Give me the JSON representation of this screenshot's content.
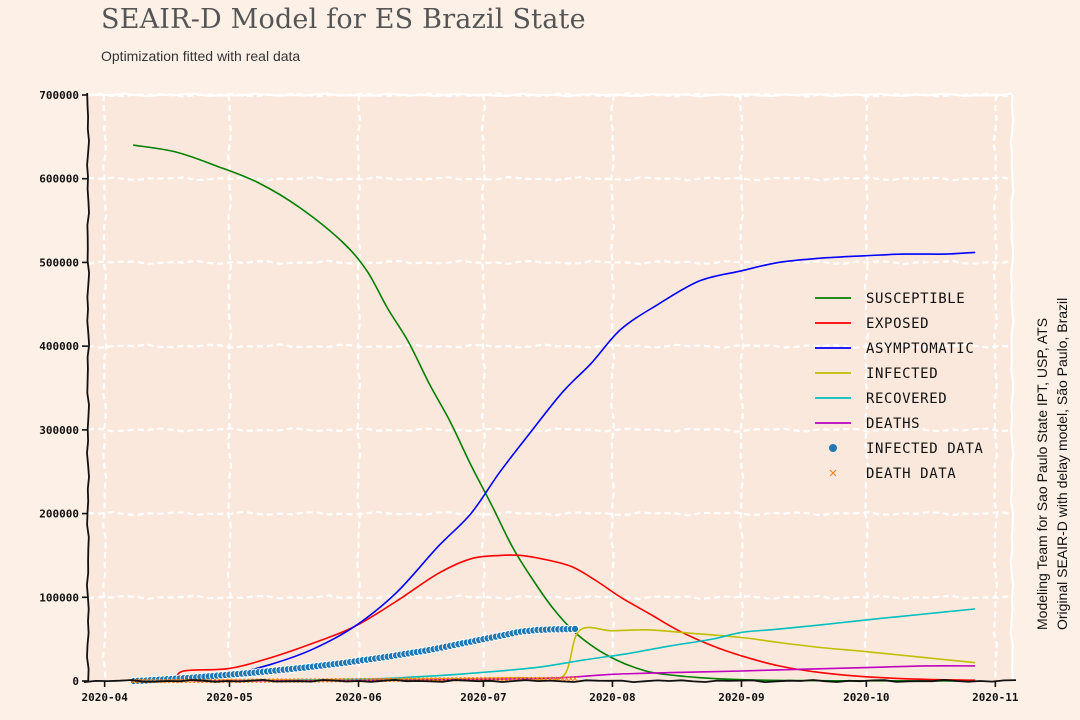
{
  "chart_data": {
    "type": "line",
    "title": "SEAIR-D Model for ES Brazil State",
    "subtitle": "Optimization fitted with real data",
    "credit_lines": [
      "Modeling Team for Sao Paulo State IPT, USP, ATS",
      "Original SEAIR-D with delay model, São Paulo, Brazil"
    ],
    "xlabel": "",
    "ylabel": "",
    "x_ticks": [
      "2020-04",
      "2020-05",
      "2020-06",
      "2020-07",
      "2020-08",
      "2020-09",
      "2020-10",
      "2020-11"
    ],
    "y_ticks": [
      0,
      100000,
      200000,
      300000,
      400000,
      500000,
      600000,
      700000
    ],
    "xlim": [
      "2020-03-28",
      "2020-11-05"
    ],
    "ylim": [
      0,
      700000
    ],
    "grid": true,
    "legend_position": "right",
    "series": [
      {
        "name": "Susceptible",
        "color": "#008000",
        "x": [
          "2020-04-08",
          "2020-04-18",
          "2020-04-28",
          "2020-05-08",
          "2020-05-18",
          "2020-05-28",
          "2020-06-03",
          "2020-06-08",
          "2020-06-13",
          "2020-06-18",
          "2020-06-23",
          "2020-06-28",
          "2020-07-03",
          "2020-07-08",
          "2020-07-13",
          "2020-07-18",
          "2020-07-23",
          "2020-07-28",
          "2020-08-02",
          "2020-08-07",
          "2020-08-12",
          "2020-08-22",
          "2020-09-01",
          "2020-09-15",
          "2020-10-01",
          "2020-10-15",
          "2020-10-27"
        ],
        "y": [
          640000,
          632000,
          615000,
          595000,
          565000,
          525000,
          490000,
          445000,
          405000,
          355000,
          310000,
          258000,
          210000,
          160000,
          120000,
          85000,
          58000,
          39000,
          25000,
          15000,
          9000,
          4000,
          1500,
          500,
          200,
          100,
          50
        ]
      },
      {
        "name": "Exposed",
        "color": "#ff0000",
        "x": [
          "2020-04-08",
          "2020-04-17",
          "2020-04-20",
          "2020-05-01",
          "2020-05-11",
          "2020-05-21",
          "2020-05-31",
          "2020-06-10",
          "2020-06-20",
          "2020-06-28",
          "2020-07-05",
          "2020-07-10",
          "2020-07-15",
          "2020-07-22",
          "2020-07-28",
          "2020-08-03",
          "2020-08-10",
          "2020-08-17",
          "2020-08-25",
          "2020-09-01",
          "2020-09-10",
          "2020-09-20",
          "2020-10-01",
          "2020-10-15",
          "2020-10-27"
        ],
        "y": [
          0,
          0,
          12000,
          15000,
          28000,
          45000,
          65000,
          95000,
          128000,
          146000,
          150000,
          150000,
          146000,
          137000,
          120000,
          100000,
          80000,
          60000,
          42000,
          30000,
          18000,
          10000,
          5000,
          2000,
          1000
        ]
      },
      {
        "name": "Asymptomatic",
        "color": "#0000ff",
        "x": [
          "2020-04-08",
          "2020-04-20",
          "2020-05-01",
          "2020-05-11",
          "2020-05-21",
          "2020-05-31",
          "2020-06-10",
          "2020-06-20",
          "2020-06-28",
          "2020-07-05",
          "2020-07-12",
          "2020-07-20",
          "2020-07-27",
          "2020-08-03",
          "2020-08-12",
          "2020-08-22",
          "2020-09-01",
          "2020-09-10",
          "2020-09-20",
          "2020-10-01",
          "2020-10-10",
          "2020-10-20",
          "2020-10-27"
        ],
        "y": [
          0,
          2000,
          8000,
          20000,
          38000,
          65000,
          105000,
          160000,
          200000,
          250000,
          295000,
          345000,
          380000,
          420000,
          450000,
          478000,
          490000,
          500000,
          505000,
          508000,
          510000,
          510000,
          512000
        ]
      },
      {
        "name": "Infected",
        "color": "#bfbf00",
        "x": [
          "2020-04-08",
          "2020-05-01",
          "2020-06-01",
          "2020-06-20",
          "2020-07-01",
          "2020-07-10",
          "2020-07-20",
          "2020-07-24",
          "2020-08-01",
          "2020-08-10",
          "2020-08-20",
          "2020-09-01",
          "2020-09-10",
          "2020-09-20",
          "2020-10-01",
          "2020-10-15",
          "2020-10-27"
        ],
        "y": [
          0,
          500,
          1500,
          2500,
          3000,
          4000,
          5000,
          60000,
          60000,
          61000,
          57000,
          52000,
          46000,
          40000,
          35000,
          28000,
          22000
        ]
      },
      {
        "name": "Recovered",
        "color": "#00bfbf",
        "x": [
          "2020-04-08",
          "2020-05-01",
          "2020-06-01",
          "2020-06-15",
          "2020-06-25",
          "2020-07-05",
          "2020-07-15",
          "2020-07-25",
          "2020-08-05",
          "2020-08-15",
          "2020-08-25",
          "2020-09-01",
          "2020-09-10",
          "2020-09-20",
          "2020-10-01",
          "2020-10-15",
          "2020-10-27"
        ],
        "y": [
          0,
          500,
          2000,
          5000,
          8000,
          12000,
          17000,
          25000,
          33000,
          42000,
          50000,
          58000,
          62000,
          67000,
          73000,
          80000,
          86000
        ]
      },
      {
        "name": "Deaths",
        "color": "#bf00bf",
        "x": [
          "2020-04-08",
          "2020-05-01",
          "2020-06-01",
          "2020-07-01",
          "2020-07-20",
          "2020-08-01",
          "2020-08-15",
          "2020-09-01",
          "2020-09-15",
          "2020-10-01",
          "2020-10-15",
          "2020-10-27"
        ],
        "y": [
          0,
          100,
          500,
          2000,
          4000,
          8000,
          10000,
          12000,
          14000,
          16000,
          18000,
          18000
        ]
      }
    ],
    "scatter_series": [
      {
        "name": "Infected Data",
        "color": "#1f77b4",
        "marker": "dot",
        "x_start": "2020-04-08",
        "x_end": "2020-07-23",
        "step_days": 1,
        "y": [
          0,
          200,
          400,
          600,
          900,
          1200,
          1500,
          1800,
          2100,
          2400,
          2700,
          3000,
          3300,
          3600,
          4000,
          4400,
          4800,
          5200,
          5600,
          6000,
          6400,
          6800,
          7200,
          7600,
          8000,
          8400,
          8800,
          9200,
          9600,
          10000,
          10500,
          11000,
          11500,
          12000,
          12500,
          13000,
          13500,
          14000,
          14500,
          15000,
          15500,
          16000,
          16600,
          17200,
          17800,
          18400,
          19000,
          19600,
          20200,
          20800,
          21400,
          22000,
          22700,
          23400,
          24100,
          24800,
          25500,
          26200,
          26900,
          27600,
          28300,
          29000,
          29800,
          30600,
          31400,
          32200,
          33000,
          33800,
          34600,
          35400,
          36200,
          37000,
          38000,
          39000,
          40000,
          41000,
          42000,
          43000,
          44000,
          45000,
          46000,
          47000,
          48000,
          49000,
          50000,
          51000,
          52000,
          53000,
          54000,
          55000,
          56000,
          57000,
          58000,
          59000,
          59500,
          60000,
          60500,
          61000,
          61200,
          61400,
          61600,
          61700,
          61800,
          61900,
          62000,
          62100,
          62200
        ]
      },
      {
        "name": "Death Data",
        "color": "#ff7f0e",
        "marker": "x",
        "x_start": "2020-04-08",
        "x_end": "2020-07-23",
        "step_days": 1,
        "y": [
          0,
          5,
          10,
          15,
          20,
          25,
          30,
          35,
          40,
          45,
          50,
          60,
          70,
          80,
          90,
          100,
          110,
          120,
          135,
          150,
          165,
          180,
          195,
          210,
          230,
          250,
          270,
          290,
          310,
          330,
          350,
          375,
          400,
          425,
          450,
          475,
          500,
          530,
          560,
          590,
          620,
          650,
          680,
          710,
          740,
          770,
          800,
          840,
          880,
          920,
          960,
          1000,
          1040,
          1080,
          1120,
          1160,
          1200,
          1240,
          1280,
          1320,
          1360,
          1400,
          1440,
          1480,
          1520,
          1560,
          1600,
          1640,
          1680,
          1720,
          1760,
          1800,
          1840,
          1880,
          1920,
          1960,
          2000,
          2030,
          2060,
          2090,
          2120,
          2150,
          2180,
          2210,
          2240,
          2270,
          2300,
          2320,
          2340,
          2360,
          2380,
          2400,
          2420,
          2440,
          2460,
          2480,
          2500,
          2520,
          2540,
          2560,
          2580,
          2600,
          2620,
          2640,
          2660,
          2680,
          2700
        ]
      }
    ],
    "legend": [
      {
        "label": "Susceptible",
        "color": "#008000",
        "kind": "line"
      },
      {
        "label": "Exposed",
        "color": "#ff0000",
        "kind": "line"
      },
      {
        "label": "Asymptomatic",
        "color": "#0000ff",
        "kind": "line"
      },
      {
        "label": "Infected",
        "color": "#bfbf00",
        "kind": "line"
      },
      {
        "label": "Recovered",
        "color": "#00bfbf",
        "kind": "line"
      },
      {
        "label": "Deaths",
        "color": "#bf00bf",
        "kind": "line"
      },
      {
        "label": "Infected Data",
        "color": "#1f77b4",
        "kind": "dot"
      },
      {
        "label": "Death Data",
        "color": "#ff7f0e",
        "kind": "x"
      }
    ]
  }
}
